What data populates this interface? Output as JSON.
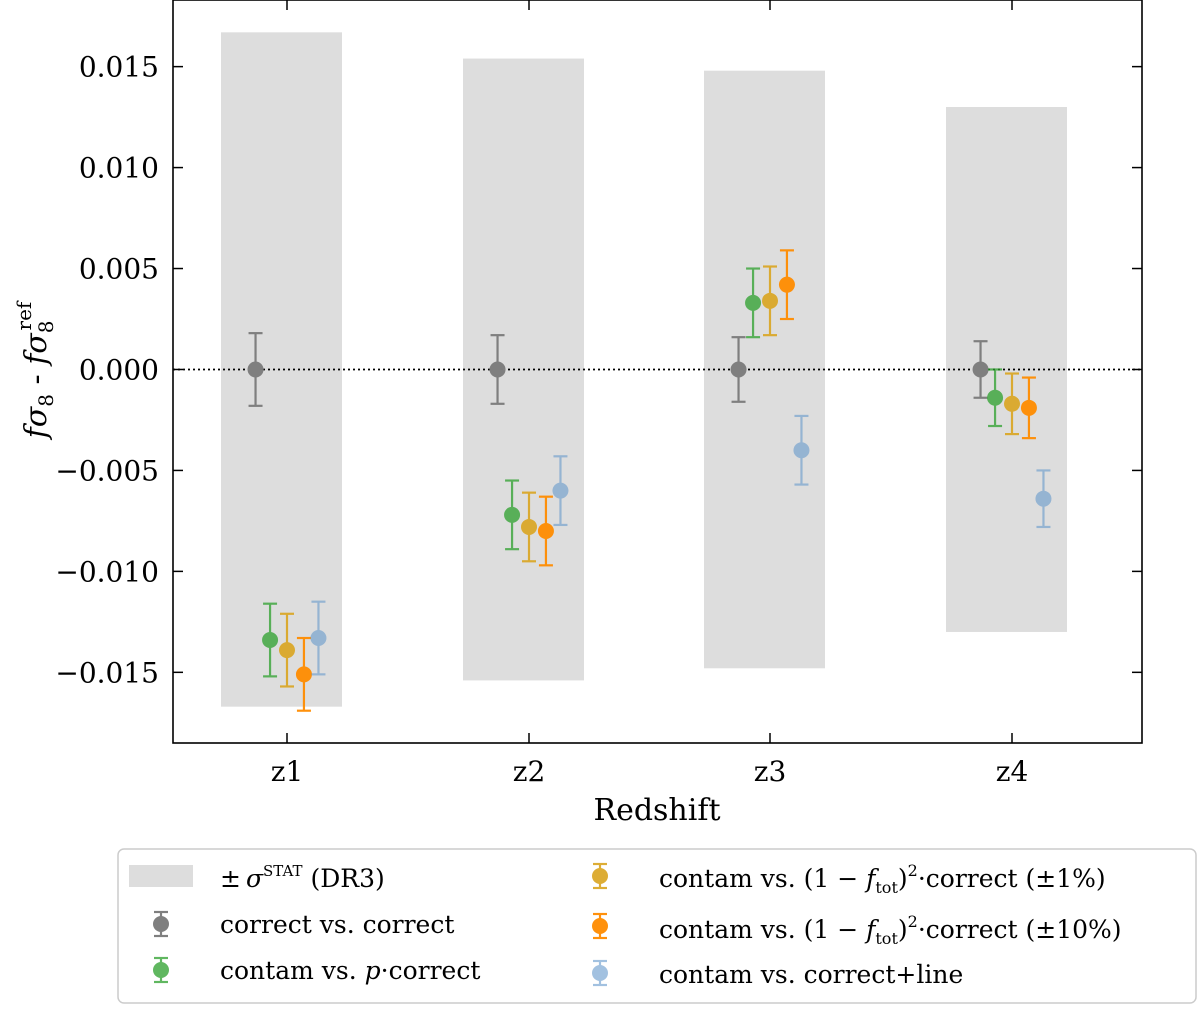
{
  "chart_data": {
    "type": "scatter",
    "title": "",
    "xlabel": "Redshift",
    "ylabel": "fσ8 - fσ8ref",
    "ylabel_parts": {
      "main": "fσ",
      "sub": "8",
      "sep": " - ",
      "main2": "fσ",
      "sub2": "8",
      "sup2": "ref"
    },
    "categories": [
      "z1",
      "z2",
      "z3",
      "z4"
    ],
    "ylim": [
      -0.0185,
      0.0183
    ],
    "yticks": [
      -0.015,
      -0.01,
      -0.005,
      0.0,
      0.005,
      0.01,
      0.015
    ],
    "ytick_labels": [
      "−0.015",
      "−0.010",
      "−0.005",
      "0.000",
      "0.005",
      "0.010",
      "0.015"
    ],
    "grid": false,
    "reference_line": {
      "y": 0.0,
      "style": "dotted"
    },
    "stat_band": {
      "name": "± σ STAT (DR3)",
      "color": "#dddddd",
      "half_widths": [
        0.0167,
        0.0154,
        0.0148,
        0.013
      ]
    },
    "series": [
      {
        "name": "correct vs. correct",
        "color": "#7f7f7f",
        "opacity": 1.0,
        "offset": -0.13,
        "values": [
          0.0,
          0.0,
          0.0,
          0.0
        ],
        "errors": [
          0.0018,
          0.0017,
          0.0016,
          0.0014
        ]
      },
      {
        "name": "contam vs. p·correct",
        "color": "#2ca02c",
        "opacity": 0.75,
        "offset": -0.07,
        "values": [
          -0.0134,
          -0.0072,
          0.0033,
          -0.0014
        ],
        "errors": [
          0.0018,
          0.0017,
          0.0017,
          0.0014
        ]
      },
      {
        "name": "contam vs. (1 − ftot)2·correct (±1%)",
        "color": "#daa520",
        "opacity": 0.9,
        "offset": 0.0,
        "values": [
          -0.0139,
          -0.0078,
          0.0034,
          -0.0017
        ],
        "errors": [
          0.0018,
          0.0017,
          0.0017,
          0.0015
        ]
      },
      {
        "name": "contam vs. (1 − ftot)2·correct (±10%)",
        "color": "#ff8c00",
        "opacity": 0.95,
        "offset": 0.07,
        "values": [
          -0.0151,
          -0.008,
          0.0042,
          -0.0019
        ],
        "errors": [
          0.0018,
          0.0017,
          0.0017,
          0.0015
        ]
      },
      {
        "name": "contam vs. correct+line",
        "color": "#6699cc",
        "opacity": 0.6,
        "offset": 0.13,
        "values": [
          -0.0133,
          -0.006,
          -0.004,
          -0.0064
        ],
        "errors": [
          0.0018,
          0.0017,
          0.0017,
          0.0014
        ]
      }
    ],
    "legend": {
      "placement": "bottom",
      "entries": {
        "band": {
          "pm": "±",
          "sigma": "σ",
          "sup": "STAT",
          "rest": " (DR3)"
        },
        "s0": {
          "text": "correct vs. correct"
        },
        "s1": {
          "pre": "contam vs. ",
          "italic": "p",
          "post": "·correct"
        },
        "s2": {
          "pre": "contam vs. (1 − ",
          "italic": "f",
          "sub": "tot",
          "close": ")",
          "sup": "2",
          "post": "·correct (±1%)"
        },
        "s3": {
          "pre": "contam vs. (1 − ",
          "italic": "f",
          "sub": "tot",
          "close": ")",
          "sup": "2",
          "post": "·correct (±10%)"
        },
        "s4": {
          "text": "contam vs. correct+line"
        }
      }
    }
  }
}
